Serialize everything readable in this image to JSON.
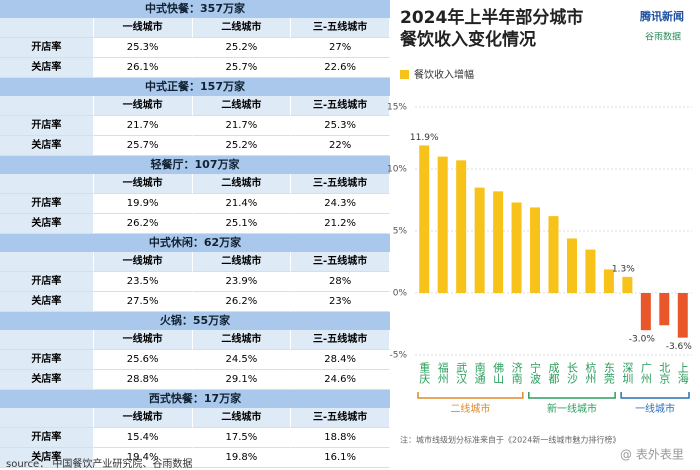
{
  "tables": [
    {
      "title": "中式快餐：357万家",
      "header": [
        "一线城市",
        "二线城市",
        "三-五线城市"
      ],
      "rows": [
        [
          "开店率",
          "25.3%",
          "25.2%",
          "27%"
        ],
        [
          "关店率",
          "26.1%",
          "25.7%",
          "22.6%"
        ]
      ]
    },
    {
      "title": "中式正餐：157万家",
      "header": [
        "一线城市",
        "二线城市",
        "三-五线城市"
      ],
      "rows": [
        [
          "开店率",
          "21.7%",
          "21.7%",
          "25.3%"
        ],
        [
          "关店率",
          "25.7%",
          "25.2%",
          "22%"
        ]
      ]
    },
    {
      "title": "轻餐厅：107万家",
      "header": [
        "一线城市",
        "二线城市",
        "三-五线城市"
      ],
      "rows": [
        [
          "开店率",
          "19.9%",
          "21.4%",
          "24.3%"
        ],
        [
          "关店率",
          "26.2%",
          "25.1%",
          "21.2%"
        ]
      ]
    },
    {
      "title": "中式休闲：62万家",
      "header": [
        "一线城市",
        "二线城市",
        "三-五线城市"
      ],
      "rows": [
        [
          "开店率",
          "23.5%",
          "23.9%",
          "28%"
        ],
        [
          "关店率",
          "27.5%",
          "26.2%",
          "23%"
        ]
      ]
    },
    {
      "title": "火锅：55万家",
      "header": [
        "一线城市",
        "二线城市",
        "三-五线城市"
      ],
      "rows": [
        [
          "开店率",
          "25.6%",
          "24.5%",
          "28.4%"
        ],
        [
          "关店率",
          "28.8%",
          "29.1%",
          "24.6%"
        ]
      ]
    },
    {
      "title": "西式快餐：17万家",
      "header": [
        "一线城市",
        "二线城市",
        "三-五线城市"
      ],
      "rows": [
        [
          "开店率",
          "15.4%",
          "17.5%",
          "18.8%"
        ],
        [
          "关店率",
          "19.4%",
          "19.8%",
          "16.1%"
        ]
      ]
    }
  ],
  "source": "source： 中国餐饮产业研究院、谷雨数据",
  "chart_data": {
    "type": "bar",
    "title": [
      "2024年上半年部分城市",
      "餐饮收入变化情况"
    ],
    "logos": [
      "腾讯新闻",
      "谷雨数据"
    ],
    "categories": [
      "重庆",
      "福州",
      "武汉",
      "南通",
      "佛山",
      "济南",
      "宁波",
      "成都",
      "长沙",
      "杭州",
      "东莞",
      "深圳",
      "广州",
      "北京",
      "上海"
    ],
    "series": [
      {
        "name": "餐饮收入增幅",
        "color": "#f7c21a",
        "negative_color": "#e8562a",
        "values": [
          11.9,
          11.0,
          10.7,
          8.5,
          8.2,
          7.3,
          6.9,
          6.2,
          4.4,
          3.5,
          1.9,
          1.3,
          -3.0,
          -2.6,
          -3.6
        ],
        "value_labels": [
          "11.9%",
          null,
          null,
          null,
          null,
          null,
          null,
          null,
          null,
          null,
          null,
          "1.3%",
          "-3.0%",
          null,
          "-3.6%"
        ]
      }
    ],
    "ylim": [
      -5,
      15
    ],
    "yticks": [
      {
        "value": -5,
        "label": "-5%"
      },
      {
        "value": 0,
        "label": "0%"
      },
      {
        "value": 5,
        "label": "5%"
      },
      {
        "value": 10,
        "label": "10%"
      },
      {
        "value": 15,
        "label": "15%"
      }
    ],
    "grid": true,
    "groups": [
      "二线城市",
      "新一线城市",
      "一线城市"
    ],
    "note": "注：城市线级划分标准来自于《2024新一线城市魅力排行榜》",
    "watermark": "@ 表外表里"
  }
}
